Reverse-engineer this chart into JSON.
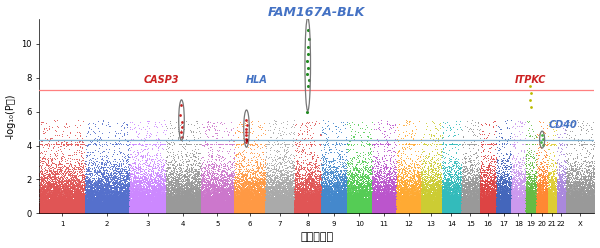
{
  "title": "FAM167A-BLK",
  "title_color": "#4472C4",
  "xlabel": "染色体番号",
  "ylabel": "-log₁₀(P値)",
  "genome_line": 7.3,
  "suggest_line": 4.3,
  "genome_line_color": "#FF8080",
  "suggest_line_color": "#80B0D0",
  "ylim": [
    0,
    11.5
  ],
  "chr_colors": [
    "#E05050",
    "#5070C0",
    "#CC88FF",
    "#888888",
    "#CC88CC",
    "#FF9955",
    "#AAAAAA",
    "#E05050",
    "#5588CC",
    "#66BB55",
    "#BB55BB",
    "#FFAA33",
    "#CCCC44",
    "#33CCCC",
    "#888888",
    "#E05050",
    "#5577BB",
    "#DDAAFF",
    "#66BB44",
    "#FF8833",
    "#DDDD33",
    "#AA88EE",
    "#AAAAAA"
  ],
  "chr_sizes": [
    248,
    242,
    198,
    190,
    181,
    170,
    158,
    146,
    140,
    135,
    134,
    132,
    114,
    107,
    100,
    90,
    81,
    78,
    59,
    63,
    47,
    51,
    155
  ],
  "random_seed": 42,
  "background_color": "#FFFFFF"
}
